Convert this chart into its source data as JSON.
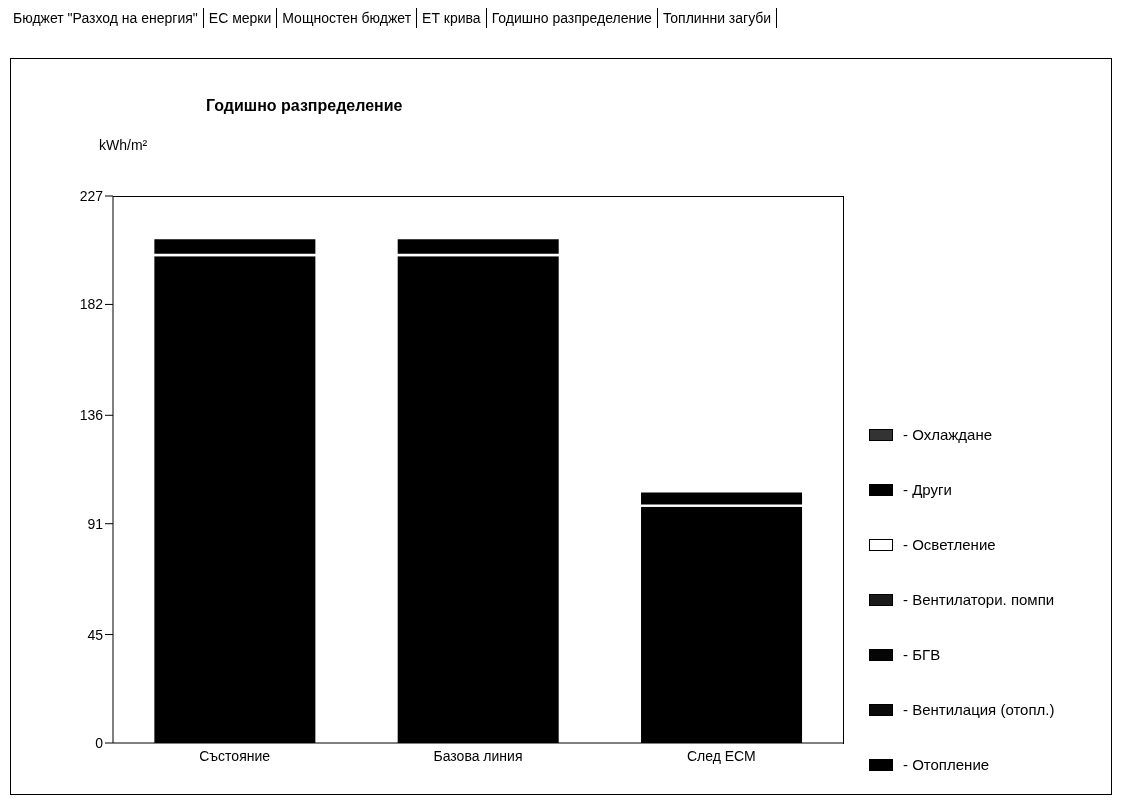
{
  "chart_data": {
    "type": "bar",
    "title": "Годишно разпределение",
    "ylabel": "kWh/m²",
    "annotations": [
      "Бюджет \"Разход на енергия\"",
      "ЕС мерки",
      "Мощностен бюджет",
      "ЕТ крива",
      "Годишно разпределение",
      "Топлинни загуби"
    ],
    "categories": [
      "Състояние",
      "Базова линия",
      "След ЕСМ"
    ],
    "stacked": true,
    "series": [
      {
        "name": "- Отопление",
        "color": "#000000",
        "values": [
          202,
          202,
          98
        ]
      },
      {
        "name": "- Вентилация (отопл.)",
        "color": "#0a0a0a",
        "values": [
          null,
          null,
          null
        ]
      },
      {
        "name": "- БГВ",
        "color": "#050505",
        "values": [
          null,
          null,
          null
        ]
      },
      {
        "name": "- Вентилатори. помпи",
        "color": "#1a1a1a",
        "values": [
          null,
          null,
          null
        ]
      },
      {
        "name": "- Осветление",
        "color": "#ffffff",
        "values": [
          1,
          1,
          1
        ]
      },
      {
        "name": "- Други",
        "color": "#000000",
        "values": [
          6,
          6,
          5
        ]
      },
      {
        "name": "- Охлаждане",
        "color": "#333333",
        "values": [
          null,
          null,
          null
        ]
      }
    ],
    "ylim": [
      0,
      227
    ],
    "yticks": [
      0,
      45,
      91,
      136,
      182,
      227
    ],
    "grid": false,
    "legend": "right"
  }
}
